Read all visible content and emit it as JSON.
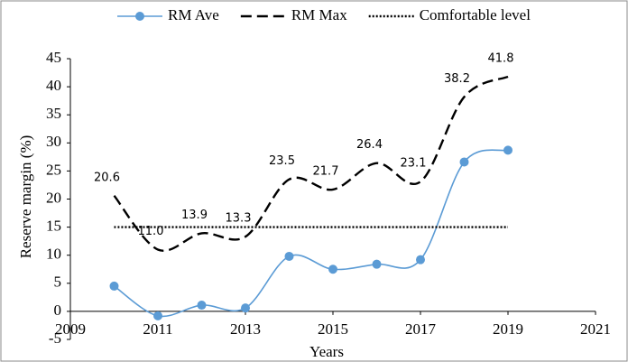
{
  "chart_data": {
    "type": "line",
    "x_label": "Years",
    "y_label": "Reserve margin (%)",
    "x": [
      2010,
      2011,
      2012,
      2013,
      2014,
      2015,
      2016,
      2017,
      2018,
      2019
    ],
    "series": [
      {
        "name": "RM Ave",
        "color": "#5b9bd5",
        "style": "solid",
        "marker": true,
        "values": [
          4.5,
          -0.8,
          1.1,
          0.6,
          9.8,
          7.5,
          8.4,
          9.2,
          26.6,
          28.7
        ]
      },
      {
        "name": "RM Max",
        "color": "#000000",
        "style": "dashed",
        "marker": false,
        "values": [
          20.6,
          11.0,
          13.9,
          13.3,
          23.5,
          21.7,
          26.4,
          23.1,
          38.2,
          41.8
        ],
        "value_labels": [
          "20.6",
          "11.0",
          "13.9",
          "13.3",
          "23.5",
          "21.7",
          "26.4",
          "23.1",
          "38.2",
          "41.8"
        ]
      },
      {
        "name": "Comfortable level",
        "color": "#000000",
        "style": "dotted",
        "marker": false,
        "values": [
          15,
          15,
          15,
          15,
          15,
          15,
          15,
          15,
          15,
          15
        ]
      }
    ],
    "xlim": [
      2009,
      2021
    ],
    "xticks": [
      2009,
      2011,
      2013,
      2015,
      2017,
      2019,
      2021
    ],
    "ylim": [
      -5,
      45
    ],
    "yticks": [
      -5,
      0,
      5,
      10,
      15,
      20,
      25,
      30,
      35,
      40,
      45
    ],
    "grid": false,
    "legend": "top"
  }
}
